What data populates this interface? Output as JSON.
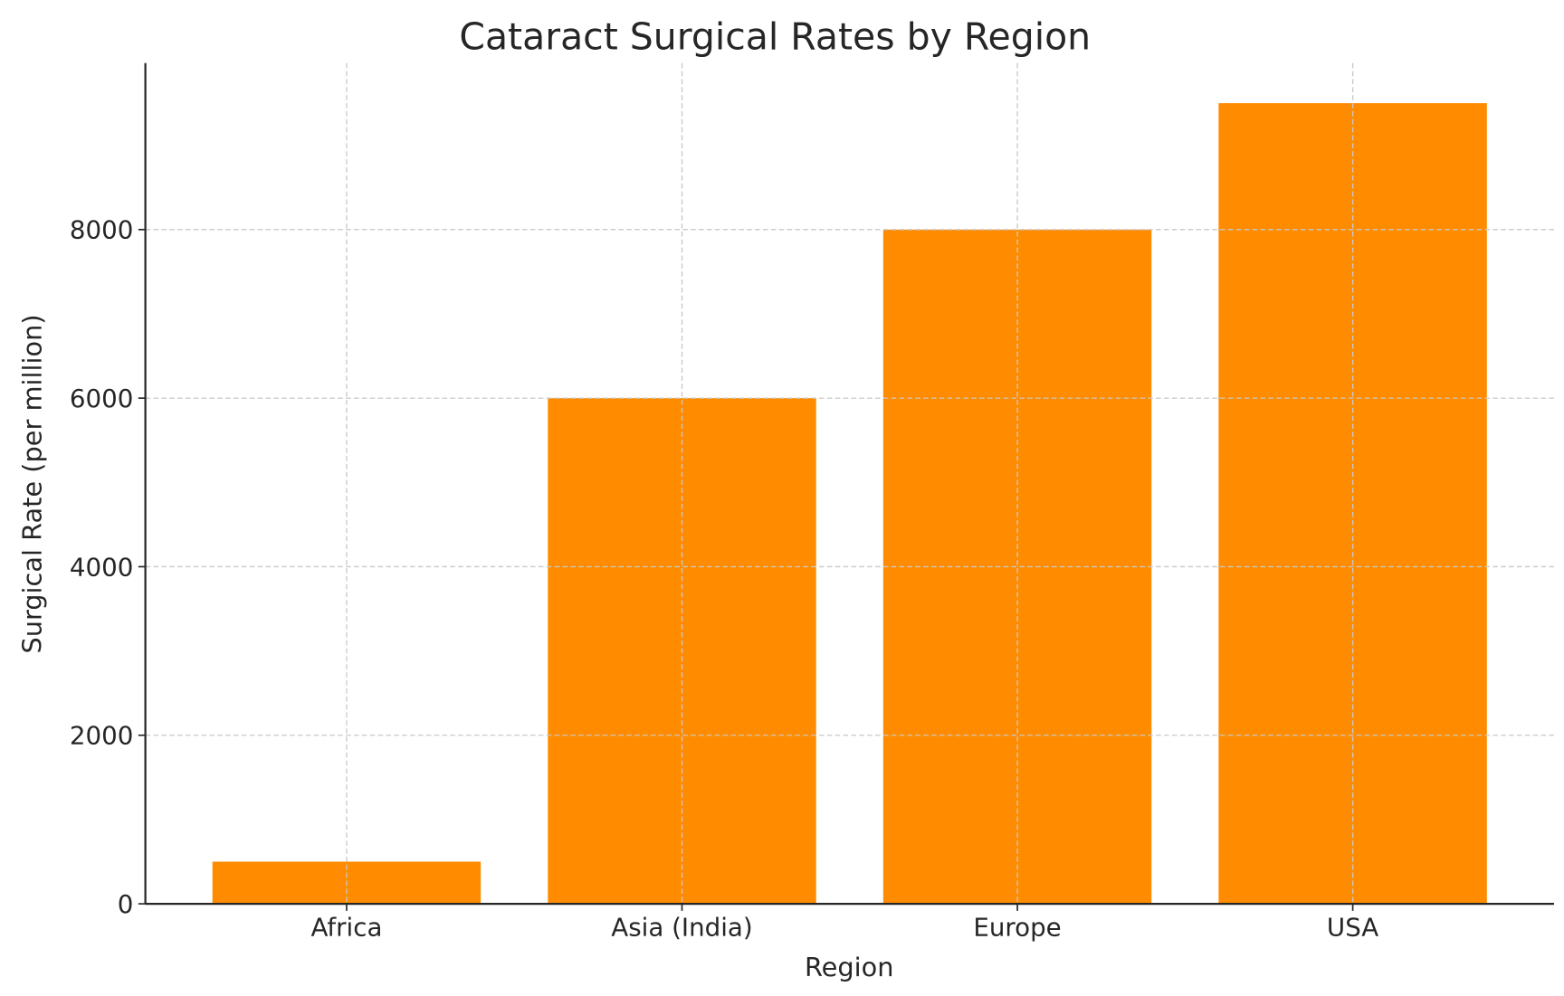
{
  "chart_data": {
    "type": "bar",
    "title": "Cataract Surgical Rates by Region",
    "xlabel": "Region",
    "ylabel": "Surgical Rate (per million)",
    "categories": [
      "Africa",
      "Asia (India)",
      "Europe",
      "USA"
    ],
    "values": [
      500,
      6000,
      8000,
      9500
    ],
    "ylim": [
      0,
      9975
    ],
    "yticks": [
      0,
      2000,
      4000,
      6000,
      8000
    ],
    "ytick_labels": [
      "0",
      "2000",
      "4000",
      "6000",
      "8000"
    ],
    "grid": true,
    "bar_color": "#ff8c00",
    "grid_color": "#c8c8c8"
  }
}
